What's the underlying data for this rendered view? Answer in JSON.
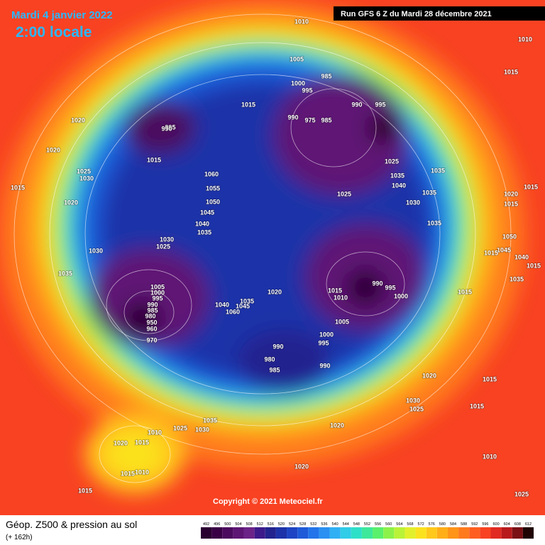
{
  "header": {
    "date": "Mardi 4 janvier 2022",
    "time": "2:00 locale",
    "run": "Run GFS 6 Z du Mardi 28 décembre 2021"
  },
  "copyright": "Copyright © 2021 Meteociel.fr",
  "footer": {
    "title": "Géop. Z500 & pression au sol",
    "lead": "(+ 162h)"
  },
  "isobar_labels": [
    "1010",
    "1010",
    "1015",
    "1020",
    "1020",
    "1015",
    "1025",
    "1030",
    "1020",
    "1030",
    "1035",
    "995",
    "990",
    "1015",
    "1015",
    "1060",
    "1055",
    "1050",
    "1045",
    "1040",
    "1035",
    "1030",
    "1025",
    "1005",
    "1000",
    "995",
    "990",
    "985",
    "980",
    "970",
    "960",
    "950",
    "1040",
    "1045",
    "1060",
    "1035",
    "1020",
    "1015",
    "1010",
    "1005",
    "1000",
    "995",
    "990",
    "980",
    "985",
    "990",
    "1005",
    "1000",
    "995",
    "990",
    "985",
    "975",
    "985",
    "990",
    "995",
    "1025",
    "1035",
    "1040",
    "1030",
    "1035",
    "1025",
    "1035",
    "1035",
    "1020",
    "1015",
    "1015",
    "1050",
    "1045",
    "1040",
    "1015",
    "1035",
    "1015",
    "990",
    "995",
    "1000",
    "1015",
    "1020",
    "1030",
    "1025",
    "1020",
    "1015",
    "1015",
    "1025",
    "1035",
    "1030",
    "1020",
    "1010",
    "1015",
    "1015",
    "1010",
    "1015",
    "1010",
    "1025",
    "1020"
  ],
  "scale": {
    "values": [
      492,
      496,
      500,
      504,
      508,
      512,
      516,
      520,
      524,
      528,
      532,
      536,
      540,
      544,
      548,
      552,
      556,
      560,
      564,
      568,
      572,
      576,
      580,
      584,
      588,
      592,
      596,
      600,
      604,
      608,
      612
    ],
    "colors": [
      "#2a0030",
      "#3a0046",
      "#4c0a5e",
      "#5e1674",
      "#6c2388",
      "#3d1a8a",
      "#23238f",
      "#1d32a8",
      "#1f45c4",
      "#1f5ad8",
      "#2374ea",
      "#2a90f2",
      "#2fb0f4",
      "#30cce8",
      "#2fe0c8",
      "#3ee89a",
      "#5af06c",
      "#8cf24a",
      "#baf238",
      "#e2f02c",
      "#fbe21e",
      "#ffc81a",
      "#ffae18",
      "#ff9418",
      "#ff7a1c",
      "#ff5e20",
      "#f84222",
      "#e02a22",
      "#b81a1c",
      "#7a1014",
      "#200404"
    ]
  }
}
